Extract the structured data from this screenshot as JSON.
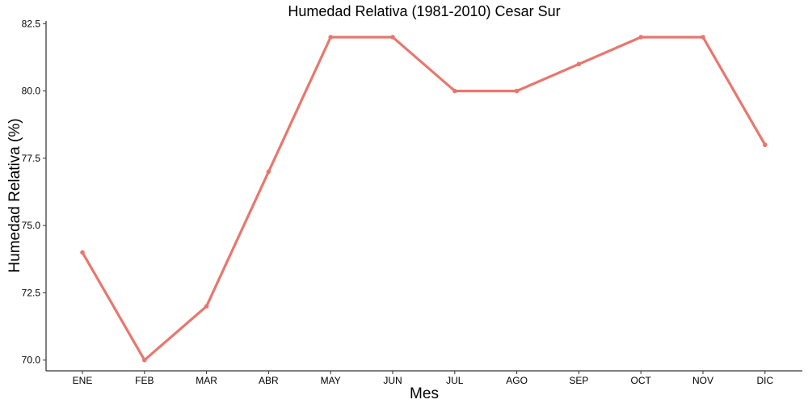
{
  "chart_data": {
    "type": "line",
    "title": "Humedad Relativa (1981-2010)  Cesar Sur",
    "xlabel": "Mes",
    "ylabel": "Humedad Relativa  (%)",
    "categories": [
      "ENE",
      "FEB",
      "MAR",
      "ABR",
      "MAY",
      "JUN",
      "JUL",
      "AGO",
      "SEP",
      "OCT",
      "NOV",
      "DIC"
    ],
    "series": [
      {
        "values": [
          74,
          70,
          72,
          77,
          82,
          82,
          80,
          80,
          81,
          82,
          82,
          78
        ],
        "color": "#E8776E"
      }
    ],
    "ylim": [
      69.6,
      82.6
    ],
    "yticks": [
      70.0,
      72.5,
      75.0,
      77.5,
      80.0,
      82.5
    ],
    "ytick_labels": [
      "70.0",
      "72.5",
      "75.0",
      "77.5",
      "80.0",
      "82.5"
    ],
    "grid": false,
    "legend": "none"
  }
}
